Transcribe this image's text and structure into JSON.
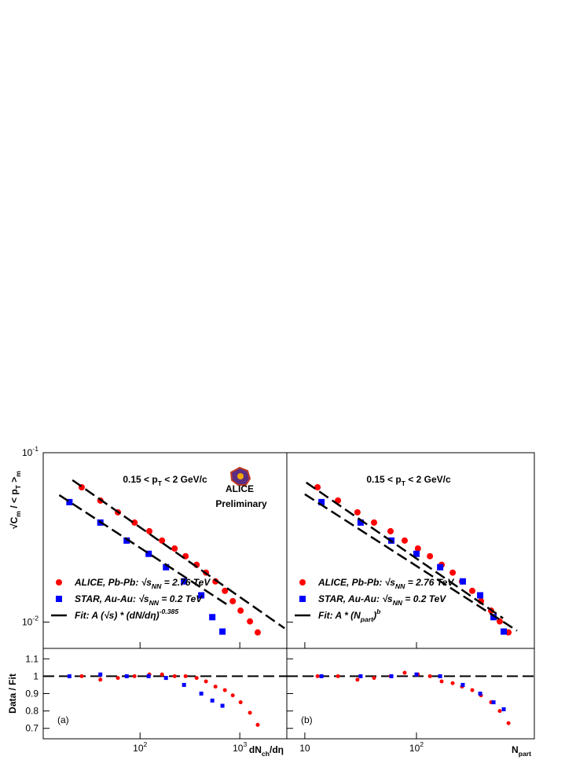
{
  "chart_data": [
    {
      "type": "scatter",
      "log_x": true,
      "log_y": true,
      "xlim": [
        10.7,
        2960
      ],
      "ylim": [
        0.007,
        0.1
      ],
      "yticks": [
        {
          "value": 0.01,
          "label": "10",
          "exponent": "-2"
        },
        {
          "value": 0.1,
          "label": "10",
          "exponent": "-1"
        }
      ],
      "ylabel": [
        {
          "text": "√C"
        },
        {
          "text": "m",
          "shift": "sub"
        },
        {
          "text": " / < p"
        },
        {
          "text": "T",
          "shift": "sub"
        },
        {
          "text": " >"
        },
        {
          "text": "m",
          "shift": "sub"
        }
      ],
      "annotation": [
        {
          "text": "0.15 < p"
        },
        {
          "text": "T",
          "shift": "sub"
        },
        {
          "text": " < 2 GeV/c"
        }
      ],
      "logo": "ALICE",
      "watermark": "Preliminary",
      "legend": "lower left",
      "series": [
        {
          "name": [
            {
              "text": "ALICE, Pb-Pb: √s"
            },
            {
              "text": "NN",
              "shift": "sub"
            },
            {
              "text": " = 2.76 TeV"
            }
          ],
          "color": "#ff0000",
          "marker": "circle",
          "x": [
            26,
            40,
            60,
            88,
            124,
            166,
            222,
            286,
            369,
            458,
            570,
            709,
            850,
            1018,
            1264,
            1512
          ],
          "values": [
            0.0625,
            0.0522,
            0.0445,
            0.0387,
            0.0344,
            0.0303,
            0.0272,
            0.0245,
            0.0218,
            0.0196,
            0.0174,
            0.0153,
            0.0133,
            0.0117,
            0.0101,
            0.0087
          ]
        },
        {
          "name": [
            {
              "text": "STAR, Au-Au:  √s"
            },
            {
              "text": "NN",
              "shift": "sub"
            },
            {
              "text": " = 0.2 TeV"
            }
          ],
          "color": "#0000ff",
          "marker": "square",
          "x": [
            19.6,
            40,
            73.5,
            122,
            182,
            276,
            411,
            530,
            670
          ],
          "values": [
            0.0511,
            0.0387,
            0.0303,
            0.0253,
            0.0211,
            0.0174,
            0.0144,
            0.0107,
            0.0088
          ]
        },
        {
          "name": [
            {
              "text": "Fit:  A (√s) * (dN/dη)"
            },
            {
              "text": "-0.385",
              "shift": "sup"
            }
          ],
          "color": "#000000",
          "marker": "dashed",
          "lines": [
            {
              "x": [
                21,
                2812
              ],
              "values": [
                0.0689,
                0.0092
              ]
            },
            {
              "x": [
                15.5,
                762
              ],
              "values": [
                0.0562,
                0.0126
              ]
            }
          ]
        }
      ]
    },
    {
      "type": "scatter",
      "log_x": true,
      "xlim": [
        10.7,
        2960
      ],
      "ylim": [
        0.64,
        1.16
      ],
      "xticks": [
        {
          "value": 100,
          "label": "10",
          "exponent": "2"
        },
        {
          "value": 1000,
          "label": "10",
          "exponent": "3"
        }
      ],
      "yticks": [
        0.7,
        0.8,
        0.9,
        1,
        1.1
      ],
      "xlabel": [
        {
          "text": "dN"
        },
        {
          "text": "ch",
          "shift": "sub"
        },
        {
          "text": "/dη"
        }
      ],
      "ylabel": "Data / Fit",
      "reference": 1,
      "panel_label": "(a)",
      "series": [
        {
          "color": "#ff0000",
          "marker": "circle",
          "x": [
            26,
            40,
            60,
            88,
            124,
            166,
            222,
            286,
            369,
            458,
            570,
            709,
            850,
            1018,
            1264,
            1512
          ],
          "values": [
            1.0,
            0.98,
            0.99,
            1.0,
            1.01,
            1.01,
            1.0,
            1.0,
            0.99,
            0.97,
            0.94,
            0.92,
            0.89,
            0.85,
            0.79,
            0.72
          ]
        },
        {
          "color": "#0000ff",
          "marker": "square",
          "x": [
            19.6,
            40,
            73.5,
            122,
            182,
            276,
            411,
            530,
            670
          ],
          "values": [
            1.0,
            1.01,
            1.0,
            1.0,
            0.99,
            0.95,
            0.9,
            0.86,
            0.83
          ]
        }
      ]
    },
    {
      "type": "scatter",
      "log_x": true,
      "log_y": true,
      "xlim": [
        6.9,
        1137
      ],
      "ylim": [
        0.007,
        0.1
      ],
      "annotation": [
        {
          "text": "0.15 < p"
        },
        {
          "text": "T",
          "shift": "sub"
        },
        {
          "text": " < 2 GeV/c"
        }
      ],
      "legend": "lower left",
      "series": [
        {
          "name": [
            {
              "text": "ALICE, Pb-Pb: √s"
            },
            {
              "text": "NN",
              "shift": "sub"
            },
            {
              "text": " = 2.76 TeV"
            }
          ],
          "color": "#ff0000",
          "marker": "circle",
          "x": [
            13,
            19.8,
            29.6,
            41.7,
            58.6,
            78.4,
            103,
            132,
            168,
            211,
            256,
            316,
            378,
            466,
            557,
            667
          ],
          "values": [
            0.0625,
            0.0522,
            0.0445,
            0.0387,
            0.0344,
            0.0303,
            0.0272,
            0.0245,
            0.0218,
            0.0196,
            0.0174,
            0.0153,
            0.0133,
            0.0117,
            0.0101,
            0.0087
          ]
        },
        {
          "name": [
            {
              "text": "STAR, Au-Au:  √s"
            },
            {
              "text": "NN",
              "shift": "sub"
            },
            {
              "text": " = 0.2 TeV"
            }
          ],
          "color": "#0000ff",
          "marker": "square",
          "x": [
            14.1,
            31.6,
            59.6,
            100,
            163,
            260,
            372,
            490,
            605
          ],
          "values": [
            0.0511,
            0.0387,
            0.0303,
            0.0253,
            0.0211,
            0.0174,
            0.0144,
            0.0107,
            0.0088
          ]
        },
        {
          "name": [
            {
              "text": "Fit:  A * (N"
            },
            {
              "text": "part",
              "shift": "sub"
            },
            {
              "text": ")"
            },
            {
              "text": "b",
              "shift": "sup"
            }
          ],
          "color": "#000000",
          "marker": "dashed",
          "lines": [
            {
              "x": [
                10.3,
                596
              ],
              "values": [
                0.0667,
                0.01055
              ]
            },
            {
              "x": [
                10,
                796
              ],
              "values": [
                0.0569,
                0.0089
              ]
            }
          ]
        }
      ]
    },
    {
      "type": "scatter",
      "log_x": true,
      "xlim": [
        6.9,
        1137
      ],
      "ylim": [
        0.64,
        1.16
      ],
      "xticks": [
        10,
        {
          "value": 100,
          "label": "10",
          "exponent": "2"
        }
      ],
      "xlabel": [
        {
          "text": "N"
        },
        {
          "text": "part",
          "shift": "sub"
        }
      ],
      "reference": 1,
      "panel_label": "(b)",
      "series": [
        {
          "color": "#ff0000",
          "marker": "circle",
          "x": [
            13,
            19.8,
            29.6,
            41.7,
            58.6,
            78.4,
            103,
            132,
            168,
            211,
            256,
            316,
            378,
            466,
            557,
            667
          ],
          "values": [
            1.0,
            1.0,
            0.98,
            0.99,
            1.0,
            1.02,
            1.01,
            1.0,
            0.97,
            0.96,
            0.94,
            0.92,
            0.89,
            0.85,
            0.8,
            0.73
          ]
        },
        {
          "color": "#0000ff",
          "marker": "square",
          "x": [
            14.1,
            31.6,
            59.6,
            100,
            163,
            260,
            372,
            490,
            605
          ],
          "values": [
            1.0,
            1.0,
            1.0,
            1.01,
            1.0,
            0.95,
            0.9,
            0.85,
            0.81
          ]
        }
      ]
    }
  ]
}
